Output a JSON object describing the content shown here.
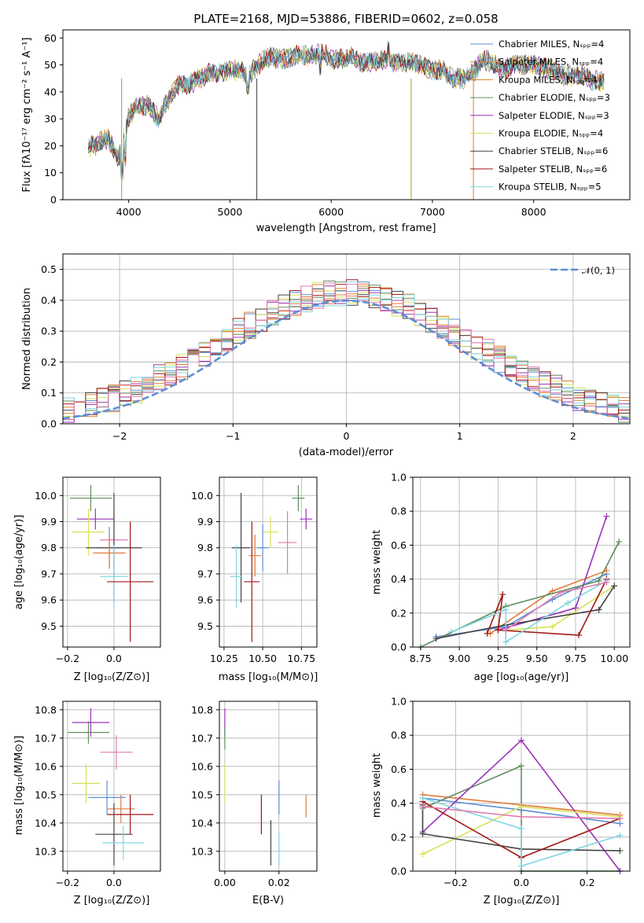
{
  "spectrum": {
    "title": "PLATE=2168, MJD=53886, FIBERID=0602, z=0.058",
    "xlabel": "wavelength [Angstrom, rest frame]",
    "ylabel": "Flux [fλ10⁻¹⁷ erg cm⁻² s⁻¹ A⁻¹]",
    "xticks": [
      "4000",
      "5000",
      "6000",
      "7000",
      "8000"
    ],
    "yticks": [
      "0",
      "10",
      "20",
      "30",
      "40",
      "50",
      "60"
    ],
    "legend": [
      {
        "label": "Chabrier MILES, Nₛₚₚ=4",
        "color": "#5b8fd6"
      },
      {
        "label": "Salpeter MILES, Nₛₚₚ=4",
        "color": "#e07b39"
      },
      {
        "label": "Kroupa MILES, Nₛₚₚ=4",
        "color": "#d9822b"
      },
      {
        "label": "Chabrier ELODIE, Nₛₚₚ=3",
        "color": "#5e8f5e"
      },
      {
        "label": "Salpeter ELODIE, Nₛₚₚ=3",
        "color": "#9b30b8"
      },
      {
        "label": "Kroupa ELODIE, Nₛₚₚ=4",
        "color": "#d8e05a"
      },
      {
        "label": "Chabrier STELIB, Nₛₚₚ=6",
        "color": "#444444"
      },
      {
        "label": "Salpeter STELIB, Nₛₚₚ=6",
        "color": "#a31515"
      },
      {
        "label": "Kroupa STELIB, Nₛₚₚ=5",
        "color": "#7fd6e0"
      }
    ]
  },
  "histogram": {
    "xlabel": "(data-model)/error",
    "ylabel": "Normed distribution",
    "xticks": [
      "−2",
      "−1",
      "0",
      "1",
      "2"
    ],
    "yticks": [
      "0.0",
      "0.1",
      "0.2",
      "0.3",
      "0.4",
      "0.5"
    ],
    "legend_label": "𝒩(0, 1)"
  },
  "age_vs_Z": {
    "xlabel": "Z [log₁₀(Z/Z⊙)]",
    "ylabel": "age  [log₁₀(age/yr)]",
    "xticks": [
      "−0.2",
      "0.0"
    ],
    "yticks": [
      "9.5",
      "9.6",
      "9.7",
      "9.8",
      "9.9",
      "10.0"
    ]
  },
  "age_vs_mass": {
    "xlabel": "mass [log₁₀(M/M⊙)]",
    "xticks": [
      "10.25",
      "10.50",
      "10.75"
    ],
    "yticks": [
      "9.5",
      "9.6",
      "9.7",
      "9.8",
      "9.9",
      "10.0"
    ]
  },
  "weight_vs_age": {
    "xlabel": "age  [log₁₀(age/yr)]",
    "ylabel": "mass weight",
    "xticks": [
      "8.75",
      "9.00",
      "9.25",
      "9.50",
      "9.75",
      "10.00"
    ],
    "yticks": [
      "0.0",
      "0.2",
      "0.4",
      "0.6",
      "0.8",
      "1.0"
    ]
  },
  "mass_vs_Z": {
    "xlabel": "Z [log₁₀(Z/Z⊙)]",
    "ylabel": "mass [log₁₀(M/M⊙)]",
    "xticks": [
      "−0.2",
      "0.0"
    ],
    "yticks": [
      "10.3",
      "10.4",
      "10.5",
      "10.6",
      "10.7",
      "10.8"
    ]
  },
  "mass_vs_ebv": {
    "xlabel": "E(B-V)",
    "xticks": [
      "0.00",
      "0.02"
    ],
    "yticks": [
      "10.3",
      "10.4",
      "10.5",
      "10.6",
      "10.7",
      "10.8"
    ]
  },
  "weight_vs_Z": {
    "xlabel": "Z [log₁₀(Z/Z⊙)]",
    "ylabel": "mass weight",
    "xticks": [
      "−0.2",
      "0.0",
      "0.2"
    ],
    "yticks": [
      "0.0",
      "0.2",
      "0.4",
      "0.6",
      "0.8",
      "1.0"
    ]
  },
  "chart_data": [
    {
      "type": "line",
      "title": "PLATE=2168, MJD=53886, FIBERID=0602, z=0.058",
      "xlabel": "wavelength [Angstrom, rest frame]",
      "ylabel": "Flux [fλ10⁻¹⁷ erg cm⁻² s⁻¹ A⁻¹]",
      "xlim": [
        3350,
        8950
      ],
      "ylim": [
        0,
        63
      ],
      "grid": false,
      "legend": "top-right",
      "x": [
        3600,
        3700,
        3800,
        3900,
        4000,
        4100,
        4200,
        4300,
        4400,
        4500,
        4600,
        4700,
        4800,
        4900,
        5000,
        5100,
        5200,
        5300,
        5400,
        5500,
        5600,
        5700,
        5800,
        5900,
        6000,
        6100,
        6200,
        6300,
        6400,
        6500,
        6600,
        6700,
        6800,
        6900,
        7000,
        7100,
        7200,
        7300,
        7400,
        7500,
        7600,
        7700,
        7800,
        7900,
        8000,
        8100,
        8200,
        8300,
        8400,
        8500,
        8600,
        8700
      ],
      "series": [
        {
          "name": "data / model spectra (9 nearly identical fits)",
          "values": [
            19,
            21,
            23,
            15,
            31,
            35,
            35,
            30,
            38,
            43,
            43,
            45,
            47,
            47,
            48,
            48,
            47,
            51,
            53,
            52,
            53,
            54,
            53,
            55,
            52,
            52,
            53,
            51,
            51,
            52,
            51,
            51,
            51,
            50,
            48,
            48,
            45,
            45,
            47,
            52,
            51,
            48,
            50,
            50,
            50,
            49,
            48,
            46,
            46,
            46,
            44,
            44
          ]
        }
      ]
    },
    {
      "type": "bar",
      "xlabel": "(data-model)/error",
      "ylabel": "Normed distribution",
      "xlim": [
        -2.5,
        2.5
      ],
      "ylim": [
        0,
        0.55
      ],
      "grid": true,
      "legend": "top-right",
      "series": [
        {
          "name": "𝒩(0, 1)",
          "kind": "gaussian",
          "mu": 0,
          "sigma": 1
        }
      ]
    },
    {
      "type": "scatter",
      "xlabel": "Z [log₁₀(Z/Z⊙)]",
      "ylabel": "age  [log₁₀(age/yr)]",
      "xlim": [
        -0.22,
        0.2
      ],
      "ylim": [
        9.42,
        10.07
      ],
      "grid": true,
      "points": [
        {
          "x": -0.1,
          "y": 9.99,
          "xerr": 0.09,
          "yerr": 0.05,
          "color": "#5e8f5e"
        },
        {
          "x": -0.08,
          "y": 9.91,
          "xerr": 0.08,
          "yerr": 0.04,
          "color": "#9b30b8"
        },
        {
          "x": -0.11,
          "y": 9.86,
          "xerr": 0.07,
          "yerr": 0.09,
          "color": "#d8e05a"
        },
        {
          "x": 0.0,
          "y": 9.83,
          "xerr": 0.06,
          "yerr": 0.11,
          "color": "#e07bb0"
        },
        {
          "x": -0.02,
          "y": 9.8,
          "xerr": 0.05,
          "yerr": 0.08,
          "color": "#5b8fd6"
        },
        {
          "x": 0.0,
          "y": 9.8,
          "xerr": 0.12,
          "yerr": 0.21,
          "color": "#444444"
        },
        {
          "x": -0.02,
          "y": 9.78,
          "xerr": 0.07,
          "yerr": 0.06,
          "color": "#e07b39"
        },
        {
          "x": 0.0,
          "y": 9.69,
          "xerr": 0.06,
          "yerr": 0.12,
          "color": "#7fd6e0"
        },
        {
          "x": 0.07,
          "y": 9.67,
          "xerr": 0.1,
          "yerr": 0.23,
          "color": "#a31515"
        }
      ]
    },
    {
      "type": "scatter",
      "xlabel": "mass [log₁₀(M/M⊙)]",
      "ylabel": "age  [log₁₀(age/yr)]",
      "xlim": [
        10.22,
        10.85
      ],
      "ylim": [
        9.42,
        10.07
      ],
      "grid": true,
      "points": [
        {
          "x": 10.73,
          "y": 9.99,
          "xerr": 0.04,
          "yerr": 0.05,
          "color": "#5e8f5e"
        },
        {
          "x": 10.78,
          "y": 9.91,
          "xerr": 0.04,
          "yerr": 0.04,
          "color": "#9b30b8"
        },
        {
          "x": 10.55,
          "y": 9.86,
          "xerr": 0.05,
          "yerr": 0.06,
          "color": "#d8e05a"
        },
        {
          "x": 10.66,
          "y": 9.82,
          "xerr": 0.06,
          "yerr": 0.12,
          "color": "#e07bb0"
        },
        {
          "x": 10.5,
          "y": 9.8,
          "xerr": 0.04,
          "yerr": 0.09,
          "color": "#5b8fd6"
        },
        {
          "x": 10.36,
          "y": 9.8,
          "xerr": 0.06,
          "yerr": 0.21,
          "color": "#444444"
        },
        {
          "x": 10.45,
          "y": 9.77,
          "xerr": 0.04,
          "yerr": 0.08,
          "color": "#e07b39"
        },
        {
          "x": 10.33,
          "y": 9.69,
          "xerr": 0.04,
          "yerr": 0.12,
          "color": "#7fd6e0"
        },
        {
          "x": 10.43,
          "y": 9.67,
          "xerr": 0.05,
          "yerr": 0.23,
          "color": "#a31515"
        }
      ]
    },
    {
      "type": "line",
      "xlabel": "age  [log₁₀(age/yr)]",
      "ylabel": "mass weight",
      "xlim": [
        8.7,
        10.1
      ],
      "ylim": [
        0,
        1
      ],
      "grid": true,
      "series": [
        {
          "color": "#5b8fd6",
          "x": [
            8.85,
            9.3,
            9.6,
            9.95
          ],
          "y": [
            0.06,
            0.12,
            0.28,
            0.43
          ]
        },
        {
          "color": "#e07b39",
          "x": [
            9.2,
            9.6,
            9.95
          ],
          "y": [
            0.08,
            0.33,
            0.45
          ]
        },
        {
          "color": "#5e8f5e",
          "x": [
            8.75,
            9.3,
            9.9,
            10.03
          ],
          "y": [
            0.0,
            0.24,
            0.39,
            0.62
          ]
        },
        {
          "color": "#9b30b8",
          "x": [
            9.25,
            9.75,
            9.95
          ],
          "y": [
            0.1,
            0.23,
            0.77
          ]
        },
        {
          "color": "#d8e05a",
          "x": [
            9.3,
            9.6,
            10.0
          ],
          "y": [
            0.1,
            0.12,
            0.36
          ]
        },
        {
          "color": "#444444",
          "x": [
            8.85,
            9.3,
            9.9,
            10.0
          ],
          "y": [
            0.05,
            0.13,
            0.22,
            0.36
          ]
        },
        {
          "color": "#a31515",
          "x": [
            9.18,
            9.28,
            9.25,
            9.77,
            9.95
          ],
          "y": [
            0.08,
            0.31,
            0.1,
            0.07,
            0.4
          ]
        },
        {
          "color": "#7fd6e0",
          "x": [
            8.95,
            9.3,
            9.3,
            9.7,
            9.95
          ],
          "y": [
            0.09,
            0.22,
            0.03,
            0.26,
            0.39
          ]
        },
        {
          "color": "#e07bb0",
          "x": [
            9.3,
            9.65,
            9.95
          ],
          "y": [
            0.1,
            0.32,
            0.38
          ]
        }
      ]
    },
    {
      "type": "scatter",
      "xlabel": "Z [log₁₀(Z/Z⊙)]",
      "ylabel": "mass [log₁₀(M/M⊙)]",
      "xlim": [
        -0.22,
        0.2
      ],
      "ylim": [
        10.23,
        10.83
      ],
      "grid": true,
      "points": [
        {
          "x": -0.1,
          "y": 10.755,
          "xerr": 0.08,
          "yerr": 0.05,
          "color": "#9b30b8"
        },
        {
          "x": -0.11,
          "y": 10.72,
          "xerr": 0.09,
          "yerr": 0.04,
          "color": "#5e8f5e"
        },
        {
          "x": 0.01,
          "y": 10.65,
          "xerr": 0.07,
          "yerr": 0.06,
          "color": "#e07bb0"
        },
        {
          "x": -0.12,
          "y": 10.54,
          "xerr": 0.06,
          "yerr": 0.07,
          "color": "#d8e05a"
        },
        {
          "x": -0.03,
          "y": 10.49,
          "xerr": 0.08,
          "yerr": 0.06,
          "color": "#5b8fd6"
        },
        {
          "x": 0.03,
          "y": 10.45,
          "xerr": 0.06,
          "yerr": 0.05,
          "color": "#e07b39"
        },
        {
          "x": 0.07,
          "y": 10.43,
          "xerr": 0.1,
          "yerr": 0.07,
          "color": "#a31515"
        },
        {
          "x": 0.0,
          "y": 10.36,
          "xerr": 0.08,
          "yerr": 0.11,
          "color": "#444444"
        },
        {
          "x": 0.04,
          "y": 10.33,
          "xerr": 0.09,
          "yerr": 0.06,
          "color": "#7fd6e0"
        }
      ]
    },
    {
      "type": "scatter",
      "xlabel": "E(B-V)",
      "ylabel": "mass [log₁₀(M/M⊙)]",
      "xlim": [
        -0.002,
        0.034
      ],
      "ylim": [
        10.23,
        10.83
      ],
      "grid": true,
      "points": [
        {
          "x": 0.0,
          "y": 10.755,
          "yerr": 0.05,
          "color": "#9b30b8"
        },
        {
          "x": 0.0,
          "y": 10.7,
          "yerr": 0.04,
          "color": "#5e8f5e"
        },
        {
          "x": 0.0,
          "y": 10.54,
          "yerr": 0.07,
          "color": "#d8e05a"
        },
        {
          "x": 0.02,
          "y": 10.49,
          "yerr": 0.06,
          "color": "#5b8fd6"
        },
        {
          "x": 0.03,
          "y": 10.46,
          "yerr": 0.04,
          "color": "#e07b39"
        },
        {
          "x": 0.0135,
          "y": 10.43,
          "yerr": 0.07,
          "color": "#a31515"
        },
        {
          "x": 0.017,
          "y": 10.33,
          "yerr": 0.08,
          "color": "#444444"
        },
        {
          "x": 0.02,
          "y": 10.31,
          "yerr": 0.06,
          "color": "#7fd6e0"
        }
      ]
    },
    {
      "type": "line",
      "xlabel": "Z [log₁₀(Z/Z⊙)]",
      "ylabel": "mass weight",
      "xlim": [
        -0.33,
        0.33
      ],
      "ylim": [
        0,
        1
      ],
      "grid": true,
      "series": [
        {
          "color": "#5b8fd6",
          "x": [
            -0.3,
            0.0,
            0.3
          ],
          "y": [
            0.43,
            0.36,
            0.28
          ]
        },
        {
          "color": "#e07b39",
          "x": [
            -0.3,
            0.0,
            0.3
          ],
          "y": [
            0.45,
            0.39,
            0.33
          ]
        },
        {
          "color": "#5e8f5e",
          "x": [
            -0.3,
            0.0,
            0.0,
            0.3
          ],
          "y": [
            0.37,
            0.62,
            0.0,
            0.0
          ]
        },
        {
          "color": "#9b30b8",
          "x": [
            -0.3,
            0.0,
            0.3
          ],
          "y": [
            0.23,
            0.77,
            0.0
          ]
        },
        {
          "color": "#d8e05a",
          "x": [
            -0.3,
            0.0,
            0.3
          ],
          "y": [
            0.1,
            0.38,
            0.32
          ]
        },
        {
          "color": "#444444",
          "x": [
            -0.3,
            -0.3,
            0.0,
            0.3
          ],
          "y": [
            0.39,
            0.22,
            0.13,
            0.12
          ]
        },
        {
          "color": "#a31515",
          "x": [
            -0.3,
            0.0,
            0.3
          ],
          "y": [
            0.41,
            0.08,
            0.31
          ]
        },
        {
          "color": "#7fd6e0",
          "x": [
            -0.3,
            0.0,
            0.0,
            0.3
          ],
          "y": [
            0.43,
            0.25,
            0.03,
            0.21
          ]
        },
        {
          "color": "#e07bb0",
          "x": [
            -0.3,
            0.0,
            0.3
          ],
          "y": [
            0.38,
            0.32,
            0.31
          ]
        }
      ]
    }
  ]
}
